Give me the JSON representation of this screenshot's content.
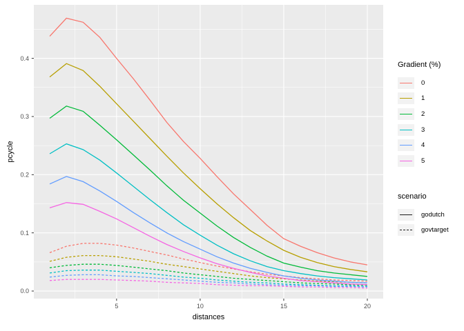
{
  "chart_data": {
    "type": "line",
    "xlabel": "distances",
    "ylabel": "pcycle",
    "x": [
      1,
      2,
      3,
      4,
      5,
      6,
      7,
      8,
      9,
      10,
      11,
      12,
      13,
      14,
      15,
      16,
      17,
      18,
      19,
      20
    ],
    "series": [
      {
        "name": "govtarget gradient 0",
        "scenario": "govtarget",
        "gradient": "0",
        "color": "#F8766D",
        "linetype": "dotted",
        "values": [
          0.066,
          0.077,
          0.082,
          0.082,
          0.079,
          0.074,
          0.068,
          0.062,
          0.055,
          0.049,
          0.043,
          0.038,
          0.033,
          0.029,
          0.026,
          0.023,
          0.021,
          0.019,
          0.018,
          0.017
        ]
      },
      {
        "name": "govtarget gradient 1",
        "scenario": "govtarget",
        "gradient": "1",
        "color": "#B79F00",
        "linetype": "dotted",
        "values": [
          0.051,
          0.058,
          0.061,
          0.061,
          0.059,
          0.055,
          0.051,
          0.046,
          0.042,
          0.038,
          0.034,
          0.03,
          0.026,
          0.023,
          0.021,
          0.019,
          0.017,
          0.016,
          0.015,
          0.014
        ]
      },
      {
        "name": "govtarget gradient 2",
        "scenario": "govtarget",
        "gradient": "2",
        "color": "#00BA38",
        "linetype": "dotted",
        "values": [
          0.04,
          0.044,
          0.046,
          0.046,
          0.044,
          0.041,
          0.038,
          0.035,
          0.031,
          0.028,
          0.025,
          0.022,
          0.02,
          0.018,
          0.016,
          0.014,
          0.013,
          0.012,
          0.011,
          0.01
        ]
      },
      {
        "name": "govtarget gradient 3",
        "scenario": "govtarget",
        "gradient": "3",
        "color": "#00BFC4",
        "linetype": "dotted",
        "values": [
          0.031,
          0.035,
          0.036,
          0.036,
          0.034,
          0.032,
          0.03,
          0.027,
          0.024,
          0.022,
          0.019,
          0.017,
          0.015,
          0.014,
          0.012,
          0.011,
          0.01,
          0.009,
          0.009,
          0.008
        ]
      },
      {
        "name": "govtarget gradient 4",
        "scenario": "govtarget",
        "gradient": "4",
        "color": "#619CFF",
        "linetype": "dotted",
        "values": [
          0.024,
          0.027,
          0.028,
          0.028,
          0.026,
          0.025,
          0.023,
          0.021,
          0.019,
          0.017,
          0.015,
          0.014,
          0.012,
          0.011,
          0.01,
          0.009,
          0.009,
          0.008,
          0.008,
          0.007
        ]
      },
      {
        "name": "govtarget gradient 5",
        "scenario": "govtarget",
        "gradient": "5",
        "color": "#F564E3",
        "linetype": "dotted",
        "values": [
          0.018,
          0.02,
          0.02,
          0.02,
          0.019,
          0.018,
          0.017,
          0.015,
          0.014,
          0.013,
          0.011,
          0.01,
          0.009,
          0.009,
          0.008,
          0.007,
          0.007,
          0.006,
          0.006,
          0.005
        ]
      },
      {
        "name": "godutch gradient 0",
        "scenario": "godutch",
        "gradient": "0",
        "color": "#F8766D",
        "linetype": "solid",
        "values": [
          0.438,
          0.469,
          0.462,
          0.436,
          0.4,
          0.365,
          0.328,
          0.29,
          0.257,
          0.228,
          0.197,
          0.167,
          0.14,
          0.113,
          0.09,
          0.077,
          0.066,
          0.057,
          0.05,
          0.045
        ]
      },
      {
        "name": "godutch gradient 1",
        "scenario": "godutch",
        "gradient": "1",
        "color": "#B79F00",
        "linetype": "solid",
        "values": [
          0.368,
          0.391,
          0.379,
          0.352,
          0.322,
          0.292,
          0.262,
          0.232,
          0.203,
          0.176,
          0.15,
          0.126,
          0.104,
          0.086,
          0.07,
          0.058,
          0.049,
          0.042,
          0.037,
          0.033
        ]
      },
      {
        "name": "godutch gradient 2",
        "scenario": "godutch",
        "gradient": "2",
        "color": "#00BA38",
        "linetype": "solid",
        "values": [
          0.297,
          0.318,
          0.309,
          0.285,
          0.26,
          0.234,
          0.208,
          0.181,
          0.156,
          0.134,
          0.112,
          0.092,
          0.075,
          0.06,
          0.048,
          0.041,
          0.035,
          0.031,
          0.028,
          0.025
        ]
      },
      {
        "name": "godutch gradient 3",
        "scenario": "godutch",
        "gradient": "3",
        "color": "#00BFC4",
        "linetype": "solid",
        "values": [
          0.236,
          0.253,
          0.243,
          0.225,
          0.203,
          0.18,
          0.157,
          0.135,
          0.114,
          0.096,
          0.079,
          0.064,
          0.052,
          0.042,
          0.035,
          0.03,
          0.026,
          0.023,
          0.021,
          0.019
        ]
      },
      {
        "name": "godutch gradient 4",
        "scenario": "godutch",
        "gradient": "4",
        "color": "#619CFF",
        "linetype": "solid",
        "values": [
          0.184,
          0.197,
          0.188,
          0.172,
          0.154,
          0.135,
          0.117,
          0.1,
          0.085,
          0.072,
          0.059,
          0.048,
          0.039,
          0.032,
          0.026,
          0.022,
          0.019,
          0.017,
          0.015,
          0.014
        ]
      },
      {
        "name": "godutch gradient 5",
        "scenario": "godutch",
        "gradient": "5",
        "color": "#F564E3",
        "linetype": "solid",
        "values": [
          0.143,
          0.152,
          0.149,
          0.137,
          0.124,
          0.109,
          0.094,
          0.08,
          0.068,
          0.057,
          0.047,
          0.039,
          0.032,
          0.026,
          0.022,
          0.018,
          0.016,
          0.014,
          0.012,
          0.011
        ]
      }
    ],
    "x_ticks": [
      {
        "label": "5",
        "value": 5
      },
      {
        "label": "10",
        "value": 10
      },
      {
        "label": "15",
        "value": 15
      },
      {
        "label": "20",
        "value": 20
      }
    ],
    "y_ticks": [
      {
        "label": "0.0",
        "value": 0.0
      },
      {
        "label": "0.1",
        "value": 0.1
      },
      {
        "label": "0.2",
        "value": 0.2
      },
      {
        "label": "0.3",
        "value": 0.3
      },
      {
        "label": "0.4",
        "value": 0.4
      }
    ],
    "x_minor": [
      2.5,
      7.5,
      12.5,
      17.5
    ],
    "y_minor": [
      0.05,
      0.15,
      0.25,
      0.35,
      0.45
    ],
    "xlim": [
      0.05,
      20.95
    ],
    "ylim": [
      -0.013,
      0.492
    ],
    "grid": true,
    "legend_position": "right",
    "panel_bg": "#EBEBEB",
    "grid_color": "#FFFFFF",
    "tick_color": "#333333",
    "tick_label_color": "#4D4D4D",
    "dash_pattern": "3.2 2.6"
  },
  "legend": {
    "gradient": {
      "title": "Gradient (%)",
      "items": [
        {
          "label": "0",
          "color": "#F8766D"
        },
        {
          "label": "1",
          "color": "#B79F00"
        },
        {
          "label": "2",
          "color": "#00BA38"
        },
        {
          "label": "3",
          "color": "#00BFC4"
        },
        {
          "label": "4",
          "color": "#619CFF"
        },
        {
          "label": "5",
          "color": "#F564E3"
        }
      ]
    },
    "scenario": {
      "title": "scenario",
      "items": [
        {
          "label": "godutch",
          "dash": "solid"
        },
        {
          "label": "govtarget",
          "dash": "dashed"
        }
      ]
    }
  }
}
